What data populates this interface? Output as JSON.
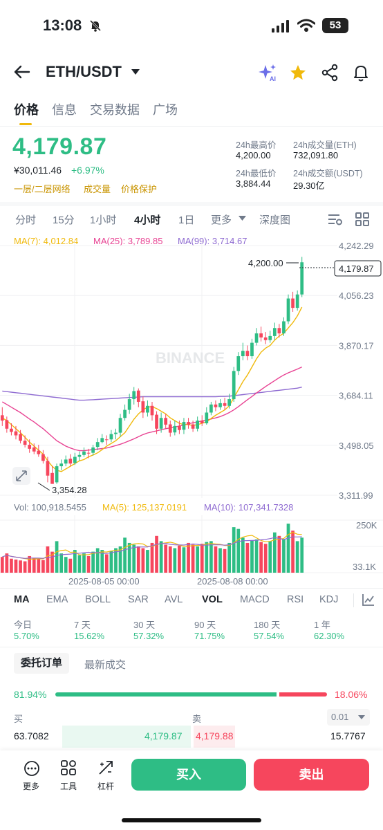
{
  "status": {
    "time": "13:08",
    "battery": "53"
  },
  "header": {
    "pair": "ETH/USDT"
  },
  "tabs": [
    "价格",
    "信息",
    "交易数据",
    "广场"
  ],
  "ticker": {
    "last_price": "4,179.87",
    "cny_price": "¥30,011.46",
    "change_pct": "+6.97%",
    "tags": [
      "一层/二层网络",
      "成交量",
      "价格保护"
    ],
    "high_label": "24h最高价",
    "high_value": "4,200.00",
    "low_label": "24h最低价",
    "low_value": "3,884.44",
    "vol_eth_label": "24h成交量(ETH)",
    "vol_eth_value": "732,091.80",
    "vol_usdt_label": "24h成交额(USDT)",
    "vol_usdt_value": "29.30亿"
  },
  "intervals": [
    "分时",
    "15分",
    "1小时",
    "4小时",
    "1日",
    "更多",
    "深度图"
  ],
  "ma_indicators": {
    "ma7": "MA(7): 4,012.84",
    "ma25": "MA(25): 3,789.85",
    "ma99": "MA(99): 3,714.67"
  },
  "price_axis": [
    "4,242.29",
    "4,056.23",
    "3,870.17",
    "3,684.11",
    "3,498.05",
    "3,311.99"
  ],
  "chart_labels": {
    "high_marker": "4,200.00",
    "low_marker": "3,354.28",
    "current_tag": "4,179.87",
    "watermark": "BINANCE"
  },
  "volume_indicators": {
    "vol": "Vol: 100,918.5455",
    "ma5": "MA(5): 125,137.0191",
    "ma10": "MA(10): 107,341.7328"
  },
  "volume_axis": [
    "250K",
    "33.1K"
  ],
  "time_axis": [
    "2025-08-05 00:00",
    "2025-08-08 00:00"
  ],
  "indicator_tabs": [
    "MA",
    "EMA",
    "BOLL",
    "SAR",
    "AVL",
    "VOL",
    "MACD",
    "RSI",
    "KDJ"
  ],
  "performance": [
    {
      "label": "今日",
      "value": "5.70%"
    },
    {
      "label": "7 天",
      "value": "15.62%"
    },
    {
      "label": "30 天",
      "value": "57.32%"
    },
    {
      "label": "90 天",
      "value": "71.75%"
    },
    {
      "label": "180 天",
      "value": "57.54%"
    },
    {
      "label": "1 年",
      "value": "62.30%"
    }
  ],
  "orderbook": {
    "tab_orders": "委托订单",
    "tab_trades": "最新成交",
    "buy_ratio": "81.94%",
    "sell_ratio": "18.06%",
    "buy_fraction": 0.8194,
    "buy_label": "买",
    "sell_label": "卖",
    "precision": "0.01",
    "row1": {
      "bid_qty": "63.7082",
      "bid_price": "4,179.87",
      "ask_price": "4,179.88",
      "ask_qty": "15.7767"
    }
  },
  "bottom_nav": {
    "more": "更多",
    "tools": "工具",
    "leverage": "杠杆",
    "buy": "买入",
    "sell": "卖出"
  },
  "colors": {
    "up": "#2ebd85",
    "down": "#f6465d",
    "accent": "#f0b90b",
    "ma7": "#f0b90b",
    "ma25": "#e84393",
    "ma99": "#8e6ad1"
  },
  "chart_data": {
    "type": "candlestick",
    "title": "",
    "ylim": [
      3311.99,
      4242.29
    ],
    "candles": [
      [
        3610,
        3590,
        3640,
        3570
      ],
      [
        3592,
        3560,
        3605,
        3545
      ],
      [
        3560,
        3548,
        3580,
        3535
      ],
      [
        3550,
        3535,
        3570,
        3520
      ],
      [
        3540,
        3515,
        3555,
        3505
      ],
      [
        3515,
        3500,
        3535,
        3490
      ],
      [
        3500,
        3485,
        3520,
        3470
      ],
      [
        3490,
        3475,
        3505,
        3465
      ],
      [
        3478,
        3465,
        3500,
        3455
      ],
      [
        3465,
        3440,
        3480,
        3430
      ],
      [
        3440,
        3385,
        3455,
        3360
      ],
      [
        3395,
        3354.28,
        3420,
        3354.28
      ],
      [
        3360,
        3420,
        3430,
        3354.28
      ],
      [
        3420,
        3430,
        3445,
        3405
      ],
      [
        3430,
        3445,
        3460,
        3420
      ],
      [
        3448,
        3430,
        3465,
        3420
      ],
      [
        3432,
        3455,
        3470,
        3425
      ],
      [
        3455,
        3462,
        3475,
        3440
      ],
      [
        3462,
        3475,
        3490,
        3455
      ],
      [
        3470,
        3468,
        3485,
        3450
      ],
      [
        3470,
        3490,
        3500,
        3460
      ],
      [
        3492,
        3510,
        3525,
        3480
      ],
      [
        3510,
        3525,
        3540,
        3505
      ],
      [
        3520,
        3518,
        3535,
        3500
      ],
      [
        3520,
        3540,
        3555,
        3510
      ],
      [
        3540,
        3545,
        3560,
        3520
      ],
      [
        3545,
        3600,
        3615,
        3530
      ],
      [
        3600,
        3630,
        3650,
        3590
      ],
      [
        3630,
        3670,
        3690,
        3615
      ],
      [
        3670,
        3700,
        3715,
        3650
      ],
      [
        3702,
        3660,
        3710,
        3640
      ],
      [
        3662,
        3620,
        3680,
        3600
      ],
      [
        3620,
        3645,
        3665,
        3605
      ],
      [
        3645,
        3610,
        3660,
        3590
      ],
      [
        3612,
        3560,
        3625,
        3540
      ],
      [
        3560,
        3600,
        3620,
        3545
      ],
      [
        3600,
        3575,
        3615,
        3560
      ],
      [
        3576,
        3545,
        3590,
        3530
      ],
      [
        3546,
        3570,
        3590,
        3535
      ],
      [
        3570,
        3555,
        3590,
        3540
      ],
      [
        3556,
        3585,
        3600,
        3540
      ],
      [
        3585,
        3575,
        3600,
        3560
      ],
      [
        3576,
        3560,
        3590,
        3548
      ],
      [
        3560,
        3590,
        3605,
        3550
      ],
      [
        3590,
        3580,
        3610,
        3570
      ],
      [
        3580,
        3620,
        3640,
        3575
      ],
      [
        3620,
        3650,
        3660,
        3610
      ],
      [
        3650,
        3640,
        3665,
        3625
      ],
      [
        3640,
        3655,
        3670,
        3630
      ],
      [
        3655,
        3645,
        3675,
        3630
      ],
      [
        3645,
        3670,
        3690,
        3635
      ],
      [
        3670,
        3775,
        3790,
        3660
      ],
      [
        3775,
        3830,
        3845,
        3760
      ],
      [
        3830,
        3850,
        3880,
        3815
      ],
      [
        3850,
        3830,
        3870,
        3815
      ],
      [
        3830,
        3880,
        3895,
        3820
      ],
      [
        3880,
        3915,
        3935,
        3870
      ],
      [
        3915,
        3900,
        3940,
        3885
      ],
      [
        3900,
        3890,
        3920,
        3875
      ],
      [
        3890,
        3905,
        3925,
        3880
      ],
      [
        3905,
        3935,
        3955,
        3890
      ],
      [
        3935,
        3915,
        3950,
        3900
      ],
      [
        3915,
        3960,
        3975,
        3905
      ],
      [
        3960,
        4045,
        4060,
        3950
      ],
      [
        4045,
        4010,
        4070,
        3995
      ],
      [
        4010,
        4060,
        4075,
        4000
      ],
      [
        4060,
        4179.87,
        4200,
        4050
      ]
    ],
    "ma7": [
      3600,
      3590,
      3575,
      3560,
      3545,
      3528,
      3510,
      3495,
      3480,
      3465,
      3440,
      3420,
      3405,
      3400,
      3410,
      3420,
      3430,
      3440,
      3445,
      3455,
      3462,
      3470,
      3482,
      3495,
      3505,
      3515,
      3530,
      3545,
      3570,
      3595,
      3615,
      3630,
      3640,
      3642,
      3635,
      3625,
      3615,
      3600,
      3590,
      3580,
      3575,
      3575,
      3572,
      3575,
      3580,
      3585,
      3598,
      3610,
      3620,
      3630,
      3645,
      3675,
      3705,
      3735,
      3760,
      3790,
      3820,
      3845,
      3860,
      3870,
      3890,
      3905,
      3915,
      3935,
      3955,
      3980,
      4012.84
    ],
    "ma25": [
      3660,
      3650,
      3640,
      3630,
      3620,
      3608,
      3596,
      3585,
      3572,
      3560,
      3545,
      3530,
      3515,
      3505,
      3495,
      3488,
      3482,
      3478,
      3478,
      3480,
      3482,
      3484,
      3486,
      3488,
      3492,
      3497,
      3502,
      3508,
      3515,
      3522,
      3530,
      3538,
      3544,
      3548,
      3552,
      3556,
      3560,
      3563,
      3566,
      3570,
      3574,
      3578,
      3582,
      3585,
      3589,
      3592,
      3596,
      3600,
      3605,
      3612,
      3620,
      3630,
      3642,
      3655,
      3668,
      3680,
      3693,
      3705,
      3717,
      3728,
      3739,
      3750,
      3760,
      3768,
      3775,
      3782,
      3789.85
    ],
    "ma99": [
      3700,
      3698,
      3696,
      3694,
      3692,
      3690,
      3688,
      3686,
      3684,
      3682,
      3680,
      3678,
      3676,
      3674,
      3672,
      3670,
      3668,
      3666,
      3666,
      3667,
      3668,
      3669,
      3670,
      3671,
      3672,
      3673,
      3674,
      3675,
      3676,
      3677,
      3678,
      3679,
      3679,
      3679,
      3679,
      3679,
      3679,
      3679,
      3679,
      3679,
      3679,
      3679,
      3679,
      3679,
      3679,
      3679,
      3679,
      3679,
      3680,
      3680,
      3681,
      3683,
      3685,
      3687,
      3689,
      3691,
      3693,
      3695,
      3697,
      3699,
      3701,
      3703,
      3705,
      3707,
      3709,
      3711,
      3714.67
    ],
    "volumes": [
      90,
      110,
      80,
      75,
      70,
      65,
      95,
      85,
      80,
      72,
      150,
      120,
      180,
      110,
      90,
      80,
      130,
      100,
      110,
      95,
      120,
      140,
      130,
      105,
      125,
      140,
      150,
      200,
      170,
      160,
      150,
      140,
      130,
      170,
      210,
      180,
      160,
      150,
      140,
      155,
      145,
      170,
      160,
      150,
      165,
      175,
      180,
      150,
      140,
      135,
      170,
      260,
      250,
      200,
      170,
      185,
      190,
      175,
      165,
      180,
      230,
      210,
      190,
      280,
      240,
      180,
      200
    ],
    "volume_ylim": [
      0,
      300
    ]
  }
}
